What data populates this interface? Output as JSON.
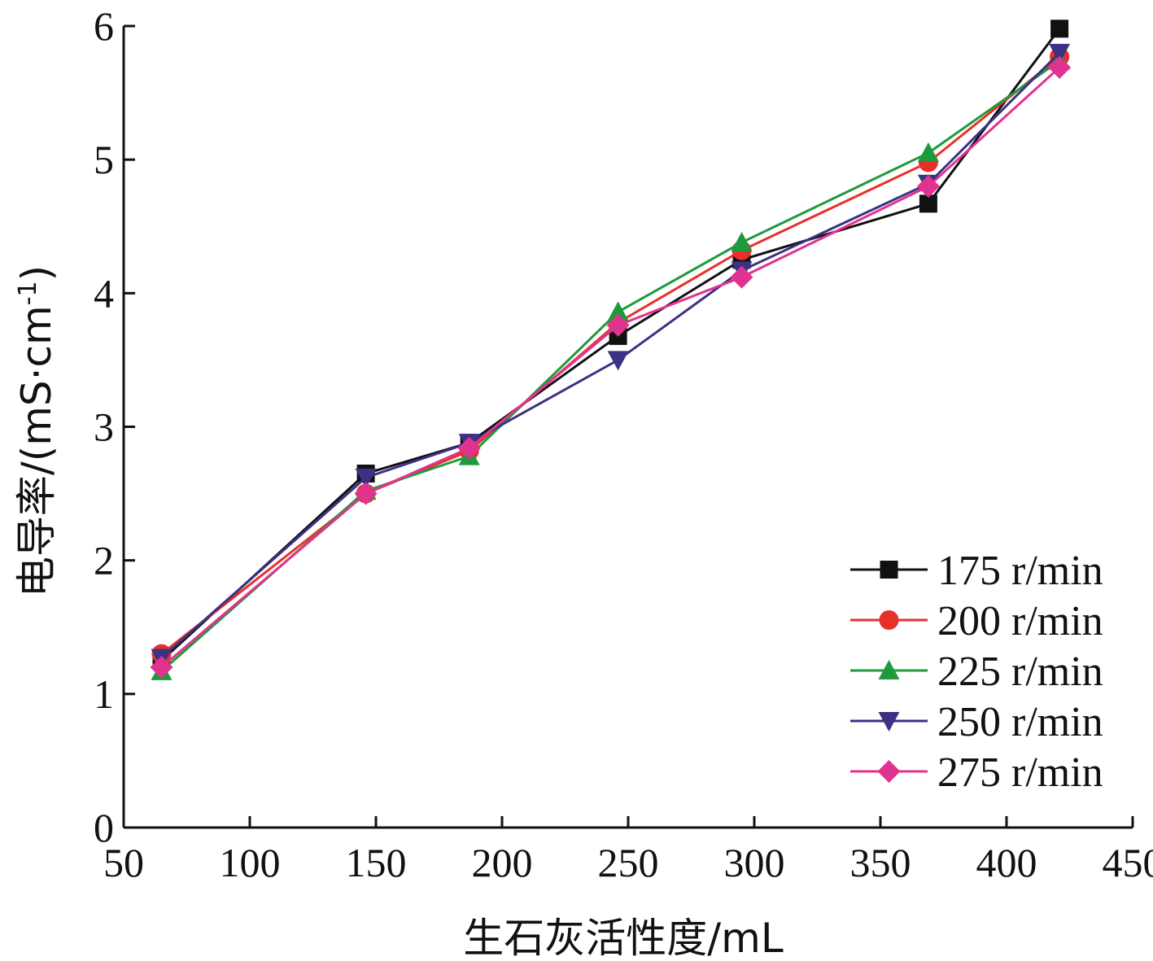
{
  "chart_data": {
    "type": "line",
    "title": "",
    "xlabel": "生石灰活性度/mL",
    "ylabel": "电导率/(mS·cm-1)",
    "ylabel_main": "电导率/(mS·cm",
    "ylabel_sup": "-1",
    "ylabel_close": ")",
    "xlim": [
      50,
      450
    ],
    "ylim": [
      0,
      6
    ],
    "xticks": [
      50,
      100,
      150,
      200,
      250,
      300,
      350,
      400,
      450
    ],
    "yticks": [
      0,
      1,
      2,
      3,
      4,
      5,
      6
    ],
    "grid": false,
    "legend_position": "bottom-right",
    "x": [
      65,
      146,
      187,
      246,
      295,
      369,
      421
    ],
    "series": [
      {
        "name": "175 r/min",
        "color": "#111111",
        "marker": "square",
        "values": [
          1.25,
          2.65,
          2.88,
          3.68,
          4.25,
          4.67,
          5.98
        ]
      },
      {
        "name": "200 r/min",
        "color": "#e8302a",
        "marker": "circle",
        "values": [
          1.3,
          2.5,
          2.82,
          3.78,
          4.32,
          4.98,
          5.77
        ]
      },
      {
        "name": "225 r/min",
        "color": "#1e9a3c",
        "marker": "triangle-up",
        "values": [
          1.17,
          2.52,
          2.78,
          3.86,
          4.38,
          5.05,
          5.74
        ]
      },
      {
        "name": "250 r/min",
        "color": "#3b3185",
        "marker": "triangle-down",
        "values": [
          1.27,
          2.62,
          2.88,
          3.5,
          4.17,
          4.82,
          5.8
        ]
      },
      {
        "name": "275 r/min",
        "color": "#e0338f",
        "marker": "diamond",
        "values": [
          1.2,
          2.5,
          2.84,
          3.76,
          4.12,
          4.8,
          5.69
        ]
      }
    ]
  }
}
